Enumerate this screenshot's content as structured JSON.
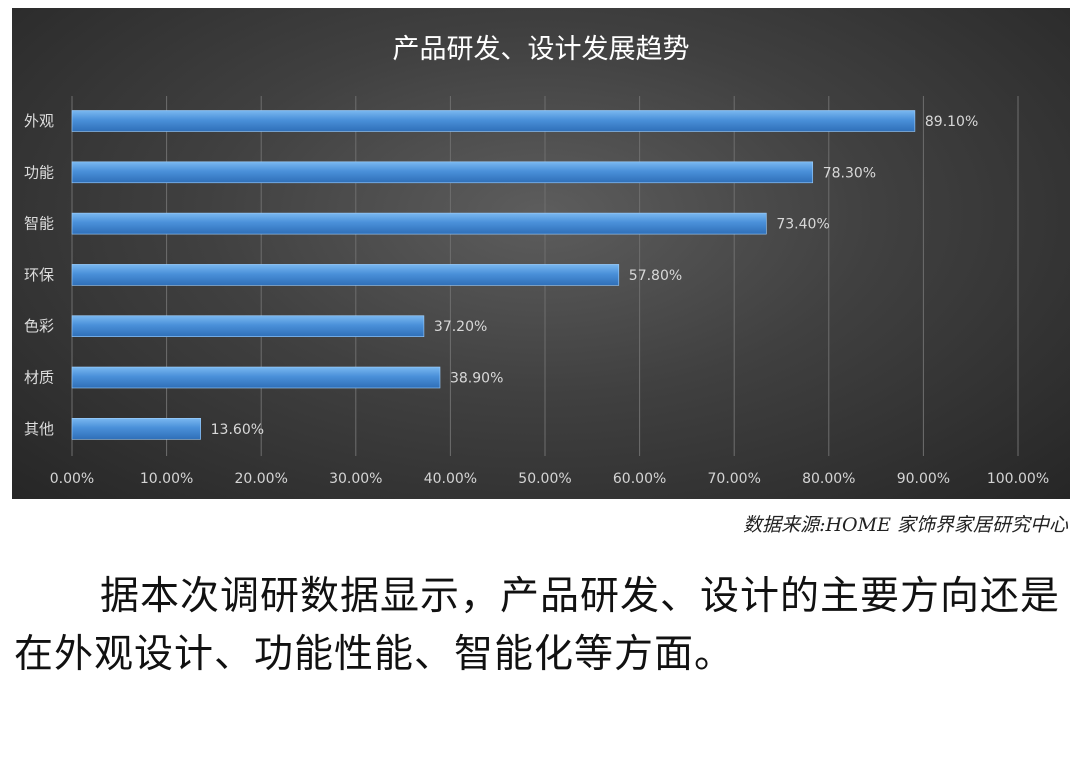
{
  "chart_data": {
    "type": "bar",
    "orientation": "horizontal",
    "title": "产品研发、设计发展趋势",
    "categories": [
      "外观",
      "功能",
      "智能",
      "环保",
      "色彩",
      "材质",
      "其他"
    ],
    "values": [
      89.1,
      78.3,
      73.4,
      57.8,
      37.2,
      38.9,
      13.6
    ],
    "data_labels": [
      "89.10%",
      "78.30%",
      "73.40%",
      "57.80%",
      "37.20%",
      "38.90%",
      "13.60%"
    ],
    "x_ticks": [
      0,
      10,
      20,
      30,
      40,
      50,
      60,
      70,
      80,
      90,
      100
    ],
    "x_tick_labels": [
      "0.00%",
      "10.00%",
      "20.00%",
      "30.00%",
      "40.00%",
      "50.00%",
      "60.00%",
      "70.00%",
      "80.00%",
      "90.00%",
      "100.00%"
    ],
    "xlim": [
      0,
      100
    ],
    "xlabel": "",
    "ylabel": "",
    "grid": "vertical",
    "legend": "none",
    "bar_color": "#4a90d9",
    "background": "#3a3a3a"
  },
  "source_note": "数据来源:HOME 家饰界家居研究中心",
  "paragraph": "据本次调研数据显示，产品研发、设计的主要方向还是在外观设计、功能性能、智能化等方面。"
}
